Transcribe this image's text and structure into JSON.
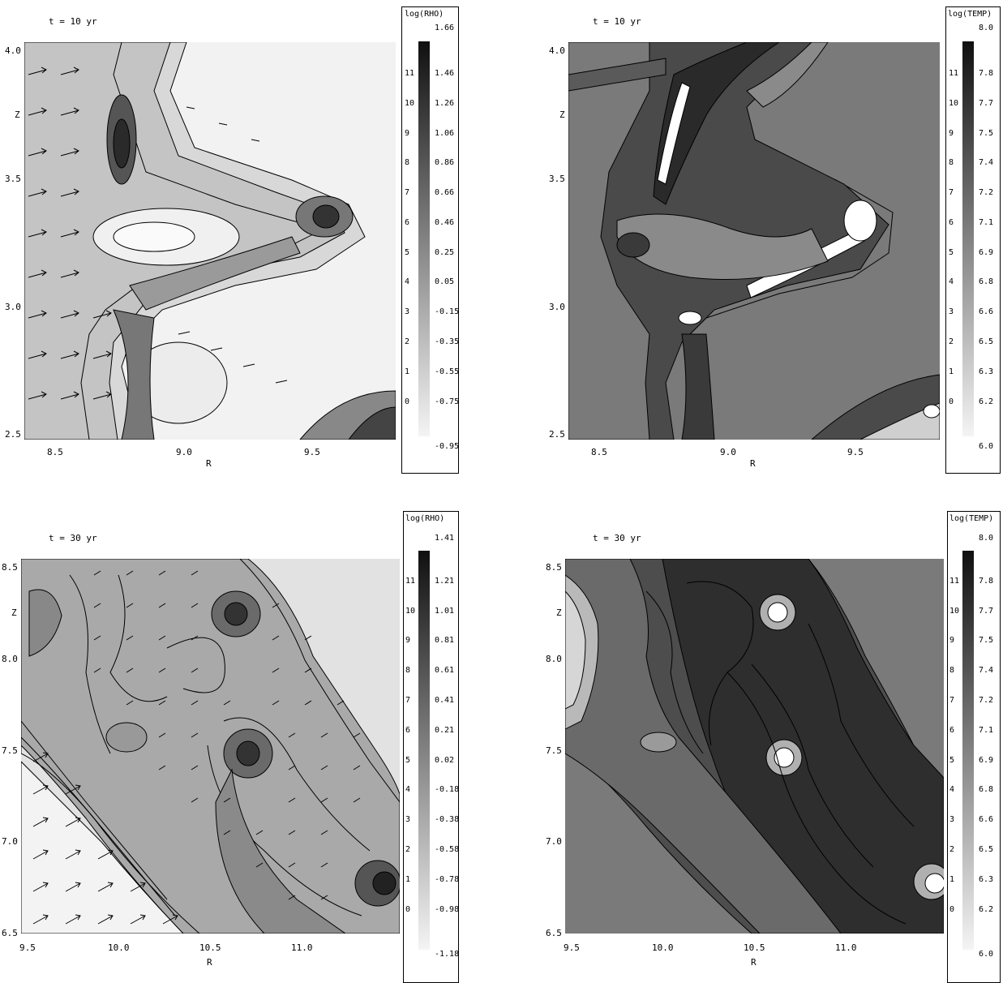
{
  "panels": [
    {
      "id": "top-left",
      "time_label": "t = 10 yr",
      "quantity": "log(RHO)",
      "x_ticks": [
        "8.5",
        "9.0",
        "9.5"
      ],
      "y_ticks": [
        "4.0",
        "3.5",
        "3.0",
        "2.5"
      ],
      "x_label": "R",
      "y_label": "Z",
      "colorbar": {
        "levels": [
          "11",
          "10",
          "9",
          "8",
          "7",
          "6",
          "5",
          "4",
          "3",
          "2",
          "1",
          "0"
        ],
        "values": [
          "1.66",
          "1.46",
          "1.26",
          "1.06",
          "0.86",
          "0.66",
          "0.46",
          "0.25",
          "0.05",
          "-0.15",
          "-0.35",
          "-0.55",
          "-0.75",
          "-0.95"
        ],
        "dark_top": "#101010",
        "light_bottom": "#f4f4f4"
      }
    },
    {
      "id": "top-right",
      "time_label": "t = 10 yr",
      "quantity": "log(TEMP)",
      "x_ticks": [
        "8.5",
        "9.0",
        "9.5"
      ],
      "y_ticks": [
        "4.0",
        "3.5",
        "3.0",
        "2.5"
      ],
      "x_label": "R",
      "y_label": "Z",
      "colorbar": {
        "levels": [
          "11",
          "10",
          "9",
          "8",
          "7",
          "6",
          "5",
          "4",
          "3",
          "2",
          "1",
          "0"
        ],
        "values": [
          "8.0",
          "7.8",
          "7.7",
          "7.5",
          "7.4",
          "7.2",
          "7.1",
          "6.9",
          "6.8",
          "6.6",
          "6.5",
          "6.3",
          "6.2",
          "6.0"
        ],
        "dark_top": "#101010",
        "light_bottom": "#f4f4f4"
      }
    },
    {
      "id": "bottom-left",
      "time_label": "t = 30 yr",
      "quantity": "log(RHO)",
      "x_ticks": [
        "9.5",
        "10.0",
        "10.5",
        "11.0"
      ],
      "y_ticks": [
        "8.5",
        "8.0",
        "7.5",
        "7.0",
        "6.5"
      ],
      "x_label": "R",
      "y_label": "Z",
      "colorbar": {
        "levels": [
          "11",
          "10",
          "9",
          "8",
          "7",
          "6",
          "5",
          "4",
          "3",
          "2",
          "1",
          "0"
        ],
        "values": [
          "1.41",
          "1.21",
          "1.01",
          "0.81",
          "0.61",
          "0.41",
          "0.21",
          "0.02",
          "-0.18",
          "-0.38",
          "-0.58",
          "-0.78",
          "-0.98",
          "-1.18"
        ],
        "dark_top": "#101010",
        "light_bottom": "#f4f4f4"
      }
    },
    {
      "id": "bottom-right",
      "time_label": "t = 30 yr",
      "quantity": "log(TEMP)",
      "x_ticks": [
        "9.5",
        "10.0",
        "10.5",
        "11.0"
      ],
      "y_ticks": [
        "8.5",
        "8.0",
        "7.5",
        "7.0",
        "6.5"
      ],
      "x_label": "R",
      "y_label": "Z",
      "colorbar": {
        "levels": [
          "11",
          "10",
          "9",
          "8",
          "7",
          "6",
          "5",
          "4",
          "3",
          "2",
          "1",
          "0"
        ],
        "values": [
          "8.0",
          "7.8",
          "7.7",
          "7.5",
          "7.4",
          "7.2",
          "7.1",
          "6.9",
          "6.8",
          "6.6",
          "6.5",
          "6.3",
          "6.2",
          "6.0"
        ],
        "dark_top": "#101010",
        "light_bottom": "#f4f4f4"
      }
    }
  ]
}
